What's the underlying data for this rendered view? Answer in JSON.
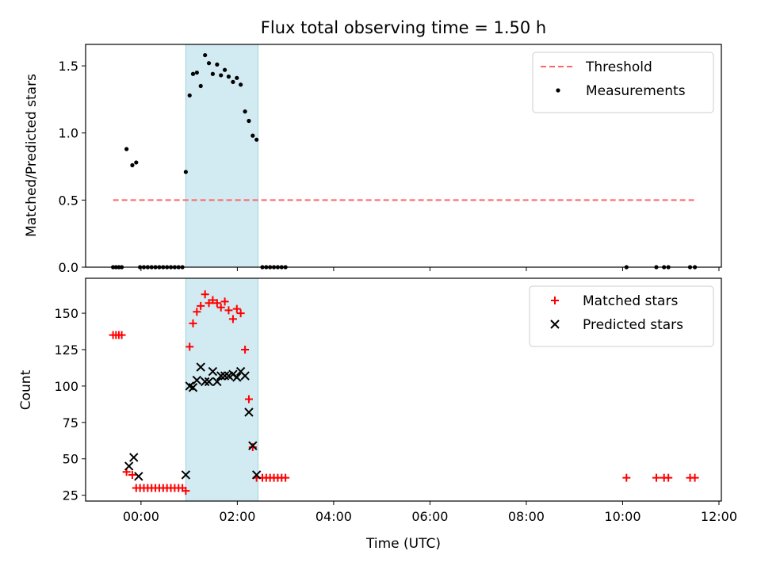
{
  "chart_data": {
    "type": "scatter",
    "title": "Flux total observing time = 1.50 h",
    "xlabel": "Time (UTC)",
    "x_ticks": [
      "00:00",
      "02:00",
      "04:00",
      "06:00",
      "08:00",
      "10:00",
      "12:00"
    ],
    "x_tick_hours": [
      0,
      2,
      4,
      6,
      8,
      10,
      12
    ],
    "xlim_hours": [
      -1.15,
      12.05
    ],
    "highlight_span_hours": [
      0.93,
      2.43
    ],
    "highlight_color": "#add8e6",
    "panels": [
      {
        "ylabel": "Matched/Predicted stars",
        "ylim": [
          0,
          1.66
        ],
        "y_ticks": [
          0.0,
          0.5,
          1.0,
          1.5
        ],
        "y_tick_labels": [
          "0.0",
          "0.5",
          "1.0",
          "1.5"
        ],
        "legend_position": "top-right",
        "threshold": {
          "name": "Threshold",
          "value": 0.5,
          "x_range_hours": [
            -0.58,
            11.5
          ],
          "color": "#ff6666"
        },
        "series": [
          {
            "name": "Measurements",
            "marker": "dot",
            "color": "#000000",
            "points": [
              [
                -0.58,
                0
              ],
              [
                -0.52,
                0
              ],
              [
                -0.46,
                0
              ],
              [
                -0.4,
                0
              ],
              [
                -0.3,
                0.88
              ],
              [
                -0.18,
                0.76
              ],
              [
                -0.1,
                0.78
              ],
              [
                -0.02,
                0
              ],
              [
                0.06,
                0
              ],
              [
                0.14,
                0
              ],
              [
                0.22,
                0
              ],
              [
                0.3,
                0
              ],
              [
                0.38,
                0
              ],
              [
                0.46,
                0
              ],
              [
                0.54,
                0
              ],
              [
                0.62,
                0
              ],
              [
                0.7,
                0
              ],
              [
                0.78,
                0
              ],
              [
                0.86,
                0
              ],
              [
                0.93,
                0.71
              ],
              [
                1.01,
                1.28
              ],
              [
                1.08,
                1.44
              ],
              [
                1.16,
                1.45
              ],
              [
                1.24,
                1.35
              ],
              [
                1.33,
                1.58
              ],
              [
                1.41,
                1.52
              ],
              [
                1.49,
                1.44
              ],
              [
                1.58,
                1.51
              ],
              [
                1.66,
                1.43
              ],
              [
                1.74,
                1.47
              ],
              [
                1.82,
                1.42
              ],
              [
                1.91,
                1.38
              ],
              [
                1.99,
                1.41
              ],
              [
                2.07,
                1.36
              ],
              [
                2.16,
                1.16
              ],
              [
                2.24,
                1.09
              ],
              [
                2.32,
                0.98
              ],
              [
                2.4,
                0.95
              ],
              [
                2.52,
                0
              ],
              [
                2.6,
                0
              ],
              [
                2.68,
                0
              ],
              [
                2.76,
                0
              ],
              [
                2.84,
                0
              ],
              [
                2.92,
                0
              ],
              [
                3.0,
                0
              ],
              [
                10.08,
                0
              ],
              [
                10.7,
                0
              ],
              [
                10.86,
                0
              ],
              [
                10.95,
                0
              ],
              [
                11.4,
                0
              ],
              [
                11.5,
                0
              ]
            ]
          }
        ]
      },
      {
        "ylabel": "Count",
        "ylim": [
          21,
          174
        ],
        "y_ticks": [
          25,
          50,
          75,
          100,
          125,
          150
        ],
        "y_tick_labels": [
          "25",
          "50",
          "75",
          "100",
          "125",
          "150"
        ],
        "legend_position": "top-right",
        "series": [
          {
            "name": "Matched stars",
            "marker": "plus",
            "color": "#ff0000",
            "points": [
              [
                -0.58,
                135
              ],
              [
                -0.52,
                135
              ],
              [
                -0.46,
                135
              ],
              [
                -0.4,
                135
              ],
              [
                -0.3,
                41
              ],
              [
                -0.18,
                39
              ],
              [
                -0.1,
                30
              ],
              [
                -0.02,
                30
              ],
              [
                0.06,
                30
              ],
              [
                0.14,
                30
              ],
              [
                0.22,
                30
              ],
              [
                0.3,
                30
              ],
              [
                0.38,
                30
              ],
              [
                0.46,
                30
              ],
              [
                0.54,
                30
              ],
              [
                0.62,
                30
              ],
              [
                0.7,
                30
              ],
              [
                0.78,
                30
              ],
              [
                0.86,
                30
              ],
              [
                0.93,
                28
              ],
              [
                1.01,
                127
              ],
              [
                1.08,
                143
              ],
              [
                1.16,
                151
              ],
              [
                1.24,
                155
              ],
              [
                1.33,
                163
              ],
              [
                1.41,
                157
              ],
              [
                1.49,
                159
              ],
              [
                1.58,
                157
              ],
              [
                1.66,
                154
              ],
              [
                1.74,
                158
              ],
              [
                1.82,
                152
              ],
              [
                1.91,
                146
              ],
              [
                1.99,
                153
              ],
              [
                2.07,
                150
              ],
              [
                2.16,
                125
              ],
              [
                2.24,
                91
              ],
              [
                2.32,
                58
              ],
              [
                2.4,
                37
              ],
              [
                2.52,
                37
              ],
              [
                2.6,
                37
              ],
              [
                2.68,
                37
              ],
              [
                2.76,
                37
              ],
              [
                2.84,
                37
              ],
              [
                2.92,
                37
              ],
              [
                3.0,
                37
              ],
              [
                10.08,
                37
              ],
              [
                10.7,
                37
              ],
              [
                10.86,
                37
              ],
              [
                10.95,
                37
              ],
              [
                11.4,
                37
              ],
              [
                11.5,
                37
              ]
            ]
          },
          {
            "name": "Predicted stars",
            "marker": "x",
            "color": "#000000",
            "points": [
              [
                -0.25,
                45
              ],
              [
                -0.15,
                51
              ],
              [
                -0.05,
                38
              ],
              [
                0.93,
                39
              ],
              [
                1.01,
                100
              ],
              [
                1.08,
                99
              ],
              [
                1.16,
                104
              ],
              [
                1.24,
                113
              ],
              [
                1.33,
                103
              ],
              [
                1.41,
                103
              ],
              [
                1.49,
                110
              ],
              [
                1.58,
                103
              ],
              [
                1.66,
                107
              ],
              [
                1.74,
                107
              ],
              [
                1.82,
                107
              ],
              [
                1.91,
                108
              ],
              [
                1.99,
                106
              ],
              [
                2.07,
                110
              ],
              [
                2.16,
                107
              ],
              [
                2.24,
                82
              ],
              [
                2.32,
                59
              ],
              [
                2.4,
                39
              ]
            ]
          }
        ]
      }
    ]
  }
}
